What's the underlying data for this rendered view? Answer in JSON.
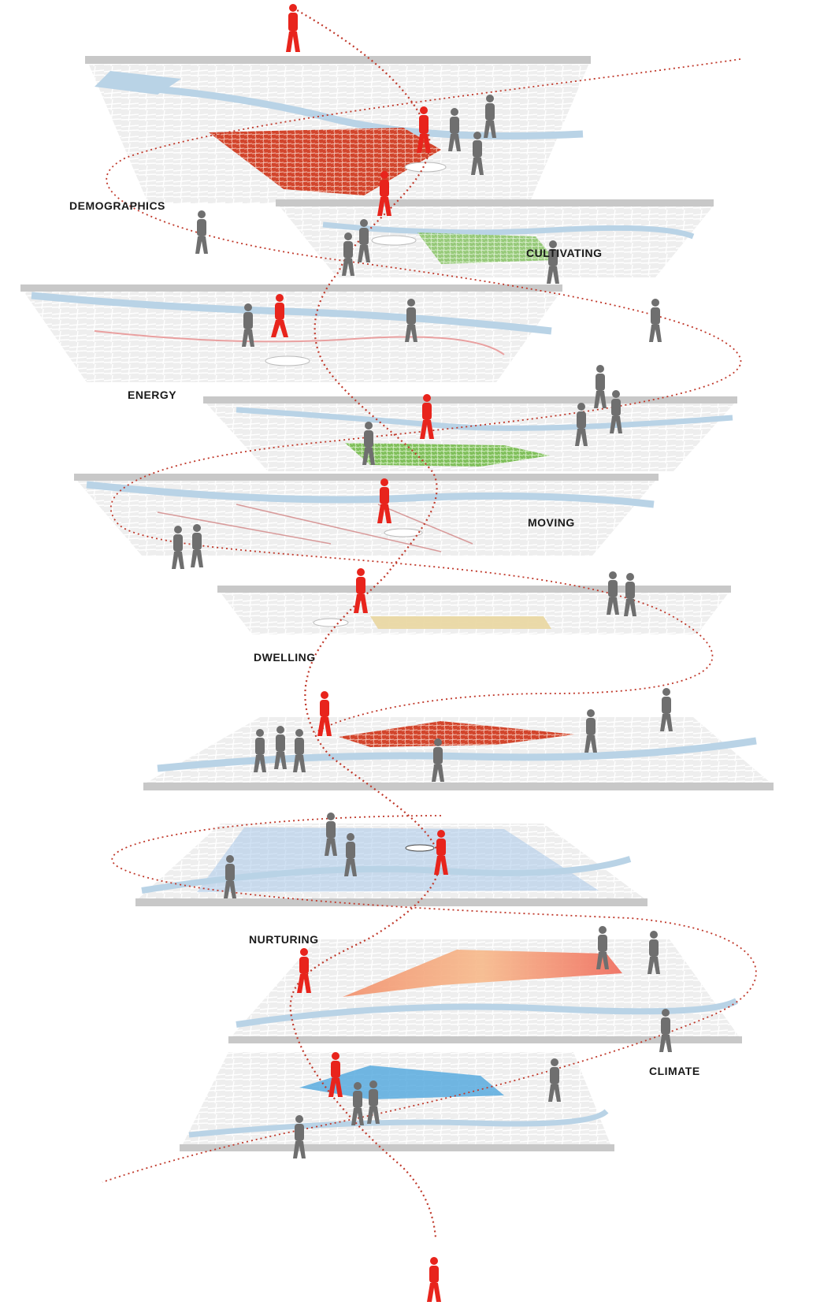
{
  "labels": {
    "demographics": "DEMOGRAPHICS",
    "cultivating": "CULTIVATING",
    "energy": "ENERGY",
    "moving": "MOVING",
    "dwelling": "DWELLING",
    "nurturing": "NURTURING",
    "climate": "CLIMATE"
  },
  "colors": {
    "slab_edge": "#c8c8c8",
    "map_ground": "#ececec",
    "river": "#b9d3e6",
    "path": "#c0392b",
    "person_accent": "#e8241c",
    "person_neutral": "#6f6f6f",
    "demographics_overlay": "#d2452c",
    "cultivating_overlay": "#a8c46a",
    "energy_overlay": "#e9a0a0",
    "nurturing_overlay": "#4c9a3c",
    "dwelling_overlay": "#e9d6a0",
    "housing_overlay": "#c93a2a",
    "water_overlay": "#a9c8ea",
    "climate_overlay": "#f08a5d",
    "heat_overlay": "#4fa6dd"
  }
}
